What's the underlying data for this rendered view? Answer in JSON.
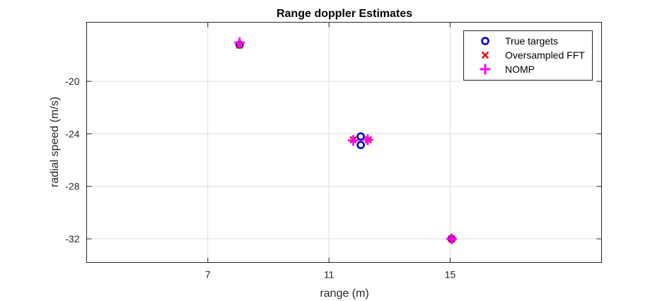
{
  "chart_data": {
    "type": "scatter",
    "title": "Range doppler Estimates",
    "xlabel": "range (m)",
    "ylabel": "radial speed (m/s)",
    "xlim": [
      3,
      20
    ],
    "ylim": [
      -33.8,
      -15.5
    ],
    "xticks": [
      7,
      11,
      15
    ],
    "yticks": [
      -20,
      -24,
      -28,
      -32
    ],
    "xtick_labels": [
      "7",
      "11",
      "15"
    ],
    "ytick_labels": [
      "-20",
      "-24",
      "-28",
      "-32"
    ],
    "grid": true,
    "legend_position": "top-right",
    "series": [
      {
        "name": "True targets",
        "marker": "circle",
        "color": "#0000CC",
        "points": [
          {
            "x": 8.05,
            "y": -17.2
          },
          {
            "x": 12.05,
            "y": -24.2
          },
          {
            "x": 12.05,
            "y": -24.85
          },
          {
            "x": 15.05,
            "y": -32.0
          }
        ]
      },
      {
        "name": "Oversampled FFT",
        "marker": "x",
        "color": "#EE1111",
        "points": [
          {
            "x": 8.05,
            "y": -17.25
          },
          {
            "x": 11.8,
            "y": -24.45
          },
          {
            "x": 12.3,
            "y": -24.45
          },
          {
            "x": 15.05,
            "y": -32.0
          }
        ]
      },
      {
        "name": "NOMP",
        "marker": "plus",
        "color": "#FF00FF",
        "points": [
          {
            "x": 8.05,
            "y": -17.05
          },
          {
            "x": 11.8,
            "y": -24.5
          },
          {
            "x": 12.28,
            "y": -24.45
          },
          {
            "x": 15.05,
            "y": -32.0
          }
        ]
      }
    ]
  }
}
